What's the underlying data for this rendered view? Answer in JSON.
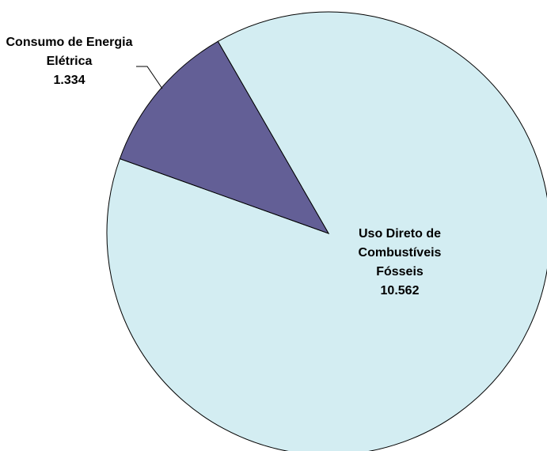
{
  "chart_data": {
    "type": "pie",
    "categories": [
      "Consumo de Energia Elétrica",
      "Uso Direto de Combustíveis Fósseis"
    ],
    "values": [
      1.334,
      10.562
    ],
    "colors": [
      "#635f96",
      "#d3edf2"
    ]
  }
}
